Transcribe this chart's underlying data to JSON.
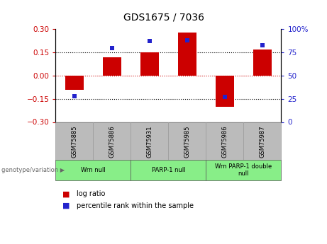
{
  "title": "GDS1675 / 7036",
  "samples": [
    "GSM75885",
    "GSM75886",
    "GSM75931",
    "GSM75985",
    "GSM75986",
    "GSM75987"
  ],
  "log_ratio": [
    -0.09,
    0.12,
    0.15,
    0.28,
    -0.2,
    0.17
  ],
  "percentile_rank": [
    28,
    80,
    87,
    88,
    27,
    83
  ],
  "ylim_left": [
    -0.3,
    0.3
  ],
  "ylim_right": [
    0,
    100
  ],
  "yticks_left": [
    -0.3,
    -0.15,
    0.0,
    0.15,
    0.3
  ],
  "yticks_right": [
    0,
    25,
    50,
    75,
    100
  ],
  "bar_color_red": "#CC0000",
  "dot_color_blue": "#2222CC",
  "background_label": "#bbbbbb",
  "background_group": "#88EE88",
  "tick_label_color_left": "#CC0000",
  "tick_label_color_right": "#2222CC",
  "legend_red_label": "log ratio",
  "legend_blue_label": "percentile rank within the sample",
  "genotype_label": "genotype/variation",
  "group_configs": [
    [
      0,
      2,
      "Wrn null"
    ],
    [
      2,
      4,
      "PARP-1 null"
    ],
    [
      4,
      6,
      "Wrn PARP-1 double\nnull"
    ]
  ]
}
